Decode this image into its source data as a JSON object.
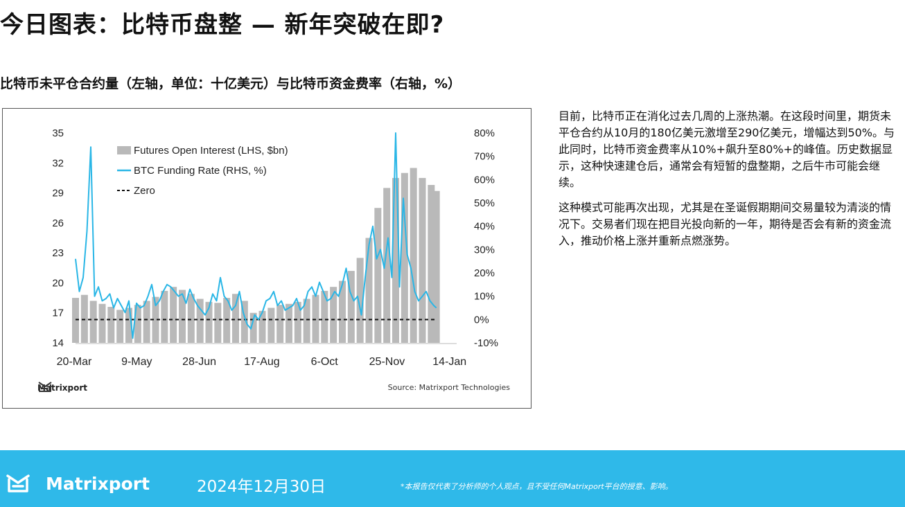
{
  "page": {
    "title": "今日图表：比特币盘整 — 新年突破在即?",
    "chart_heading": "比特币未平仓合约量（左轴，单位：十亿美元）与比特币资金费率（右轴，%）",
    "paragraphs": [
      "目前，比特币正在消化过去几周的上涨热潮。在这段时间里，期货未平仓合约从10月的180亿美元激增至290亿美元，增幅达到50%。与此同时，比特币资金费率从10%+飙升至80%+的峰值。历史数据显示，这种快速建仓后，通常会有短暂的盘整期，之后牛市可能会继续。",
      "这种模式可能再次出现，尤其是在圣诞假期期间交易量较为清淡的情况下。交易者们现在把目光投向新的一年，期待是否会有新的资金流入，推动价格上涨并重新点燃涨势。"
    ],
    "chart_brand": "Matrixport",
    "source": "Source: Matrixport Technologies"
  },
  "footer": {
    "brand": "Matrixport",
    "date": "2024年12月30日",
    "disclaimer": "*本报告仅代表了分析师的个人观点，且不受任何Matrixport平台的授意、影响。"
  },
  "colors": {
    "bars": "#b9b9b9",
    "funding_line": "#29b6e6",
    "zero_line": "#111111",
    "footer_bg": "#2fb9e9"
  },
  "chart_data": {
    "type": "bar+line",
    "x_ticks": [
      "20-Mar",
      "9-May",
      "28-Jun",
      "17-Aug",
      "6-Oct",
      "25-Nov",
      "14-Jan"
    ],
    "x_range": [
      "2024-03-20",
      "2025-01-14"
    ],
    "ylim_left": [
      14,
      35
    ],
    "yticks_left": [
      "14",
      "17",
      "20",
      "23",
      "26",
      "29",
      "32",
      "35"
    ],
    "ylim_right": [
      -10,
      80
    ],
    "yticks_right": [
      "-10%",
      "0%",
      "10%",
      "20%",
      "30%",
      "40%",
      "50%",
      "60%",
      "70%",
      "80%"
    ],
    "legend": [
      "Futures Open Interest (LHS, $bn)",
      "BTC Funding Rate (RHS, %)",
      "Zero"
    ],
    "legend_position": "top-left",
    "grid": false,
    "series": [
      {
        "name": "Futures Open Interest (LHS, $bn)",
        "axis": "left",
        "kind": "bar",
        "x": [
          "2024-03-20",
          "2024-03-27",
          "2024-04-03",
          "2024-04-10",
          "2024-04-17",
          "2024-04-24",
          "2024-05-01",
          "2024-05-08",
          "2024-05-15",
          "2024-05-22",
          "2024-05-29",
          "2024-06-05",
          "2024-06-12",
          "2024-06-19",
          "2024-06-26",
          "2024-07-03",
          "2024-07-10",
          "2024-07-17",
          "2024-07-24",
          "2024-07-31",
          "2024-08-07",
          "2024-08-14",
          "2024-08-21",
          "2024-08-28",
          "2024-09-04",
          "2024-09-11",
          "2024-09-18",
          "2024-09-25",
          "2024-10-02",
          "2024-10-09",
          "2024-10-16",
          "2024-10-23",
          "2024-10-30",
          "2024-11-06",
          "2024-11-13",
          "2024-11-20",
          "2024-11-27",
          "2024-12-04",
          "2024-12-11",
          "2024-12-18",
          "2024-12-25",
          "2024-12-29"
        ],
        "values": [
          18.5,
          18.8,
          18.2,
          17.9,
          17.6,
          17.3,
          17.5,
          17.8,
          18.2,
          18.6,
          19.2,
          19.6,
          19.3,
          18.9,
          18.4,
          18.1,
          18.0,
          18.5,
          18.9,
          18.2,
          17.0,
          17.2,
          17.5,
          17.8,
          17.9,
          18.1,
          18.4,
          18.8,
          19.2,
          19.6,
          20.2,
          21.2,
          22.5,
          24.5,
          27.5,
          29.5,
          30.5,
          31.0,
          31.5,
          30.5,
          29.8,
          29.2
        ]
      },
      {
        "name": "BTC Funding Rate (RHS, %)",
        "axis": "right",
        "kind": "line",
        "x": [
          "2024-03-20",
          "2024-03-23",
          "2024-03-26",
          "2024-03-29",
          "2024-04-01",
          "2024-04-04",
          "2024-04-07",
          "2024-04-10",
          "2024-04-13",
          "2024-04-16",
          "2024-04-19",
          "2024-04-22",
          "2024-04-25",
          "2024-04-28",
          "2024-05-01",
          "2024-05-04",
          "2024-05-07",
          "2024-05-10",
          "2024-05-13",
          "2024-05-16",
          "2024-05-19",
          "2024-05-22",
          "2024-05-25",
          "2024-05-28",
          "2024-05-31",
          "2024-06-03",
          "2024-06-06",
          "2024-06-09",
          "2024-06-12",
          "2024-06-15",
          "2024-06-18",
          "2024-06-21",
          "2024-06-24",
          "2024-06-27",
          "2024-06-30",
          "2024-07-03",
          "2024-07-06",
          "2024-07-09",
          "2024-07-12",
          "2024-07-15",
          "2024-07-18",
          "2024-07-21",
          "2024-07-24",
          "2024-07-27",
          "2024-07-30",
          "2024-08-02",
          "2024-08-05",
          "2024-08-08",
          "2024-08-11",
          "2024-08-14",
          "2024-08-17",
          "2024-08-20",
          "2024-08-23",
          "2024-08-26",
          "2024-08-29",
          "2024-09-01",
          "2024-09-04",
          "2024-09-07",
          "2024-09-10",
          "2024-09-13",
          "2024-09-16",
          "2024-09-19",
          "2024-09-22",
          "2024-09-25",
          "2024-09-28",
          "2024-10-01",
          "2024-10-04",
          "2024-10-07",
          "2024-10-10",
          "2024-10-13",
          "2024-10-16",
          "2024-10-19",
          "2024-10-22",
          "2024-10-25",
          "2024-10-28",
          "2024-10-31",
          "2024-11-03",
          "2024-11-06",
          "2024-11-09",
          "2024-11-12",
          "2024-11-15",
          "2024-11-18",
          "2024-11-21",
          "2024-11-24",
          "2024-11-27",
          "2024-11-30",
          "2024-12-03",
          "2024-12-06",
          "2024-12-09",
          "2024-12-12",
          "2024-12-15",
          "2024-12-18",
          "2024-12-21",
          "2024-12-24",
          "2024-12-27",
          "2024-12-29"
        ],
        "values": [
          26,
          12,
          18,
          38,
          74,
          10,
          14,
          8,
          9,
          11,
          5,
          9,
          6,
          3,
          8,
          -8,
          7,
          5,
          6,
          10,
          15,
          6,
          8,
          12,
          15,
          14,
          12,
          10,
          11,
          7,
          13,
          9,
          6,
          4,
          2,
          5,
          11,
          8,
          18,
          10,
          8,
          4,
          6,
          12,
          3,
          -2,
          -4,
          2,
          0,
          3,
          8,
          9,
          12,
          6,
          8,
          4,
          5,
          6,
          9,
          4,
          6,
          12,
          14,
          10,
          16,
          12,
          8,
          9,
          12,
          10,
          15,
          22,
          12,
          8,
          10,
          2,
          18,
          32,
          40,
          26,
          30,
          22,
          35,
          18,
          80,
          14,
          52,
          28,
          22,
          12,
          8,
          10,
          12,
          8,
          6,
          5
        ]
      },
      {
        "name": "Zero",
        "axis": "right",
        "kind": "hline",
        "value": 0
      }
    ]
  }
}
